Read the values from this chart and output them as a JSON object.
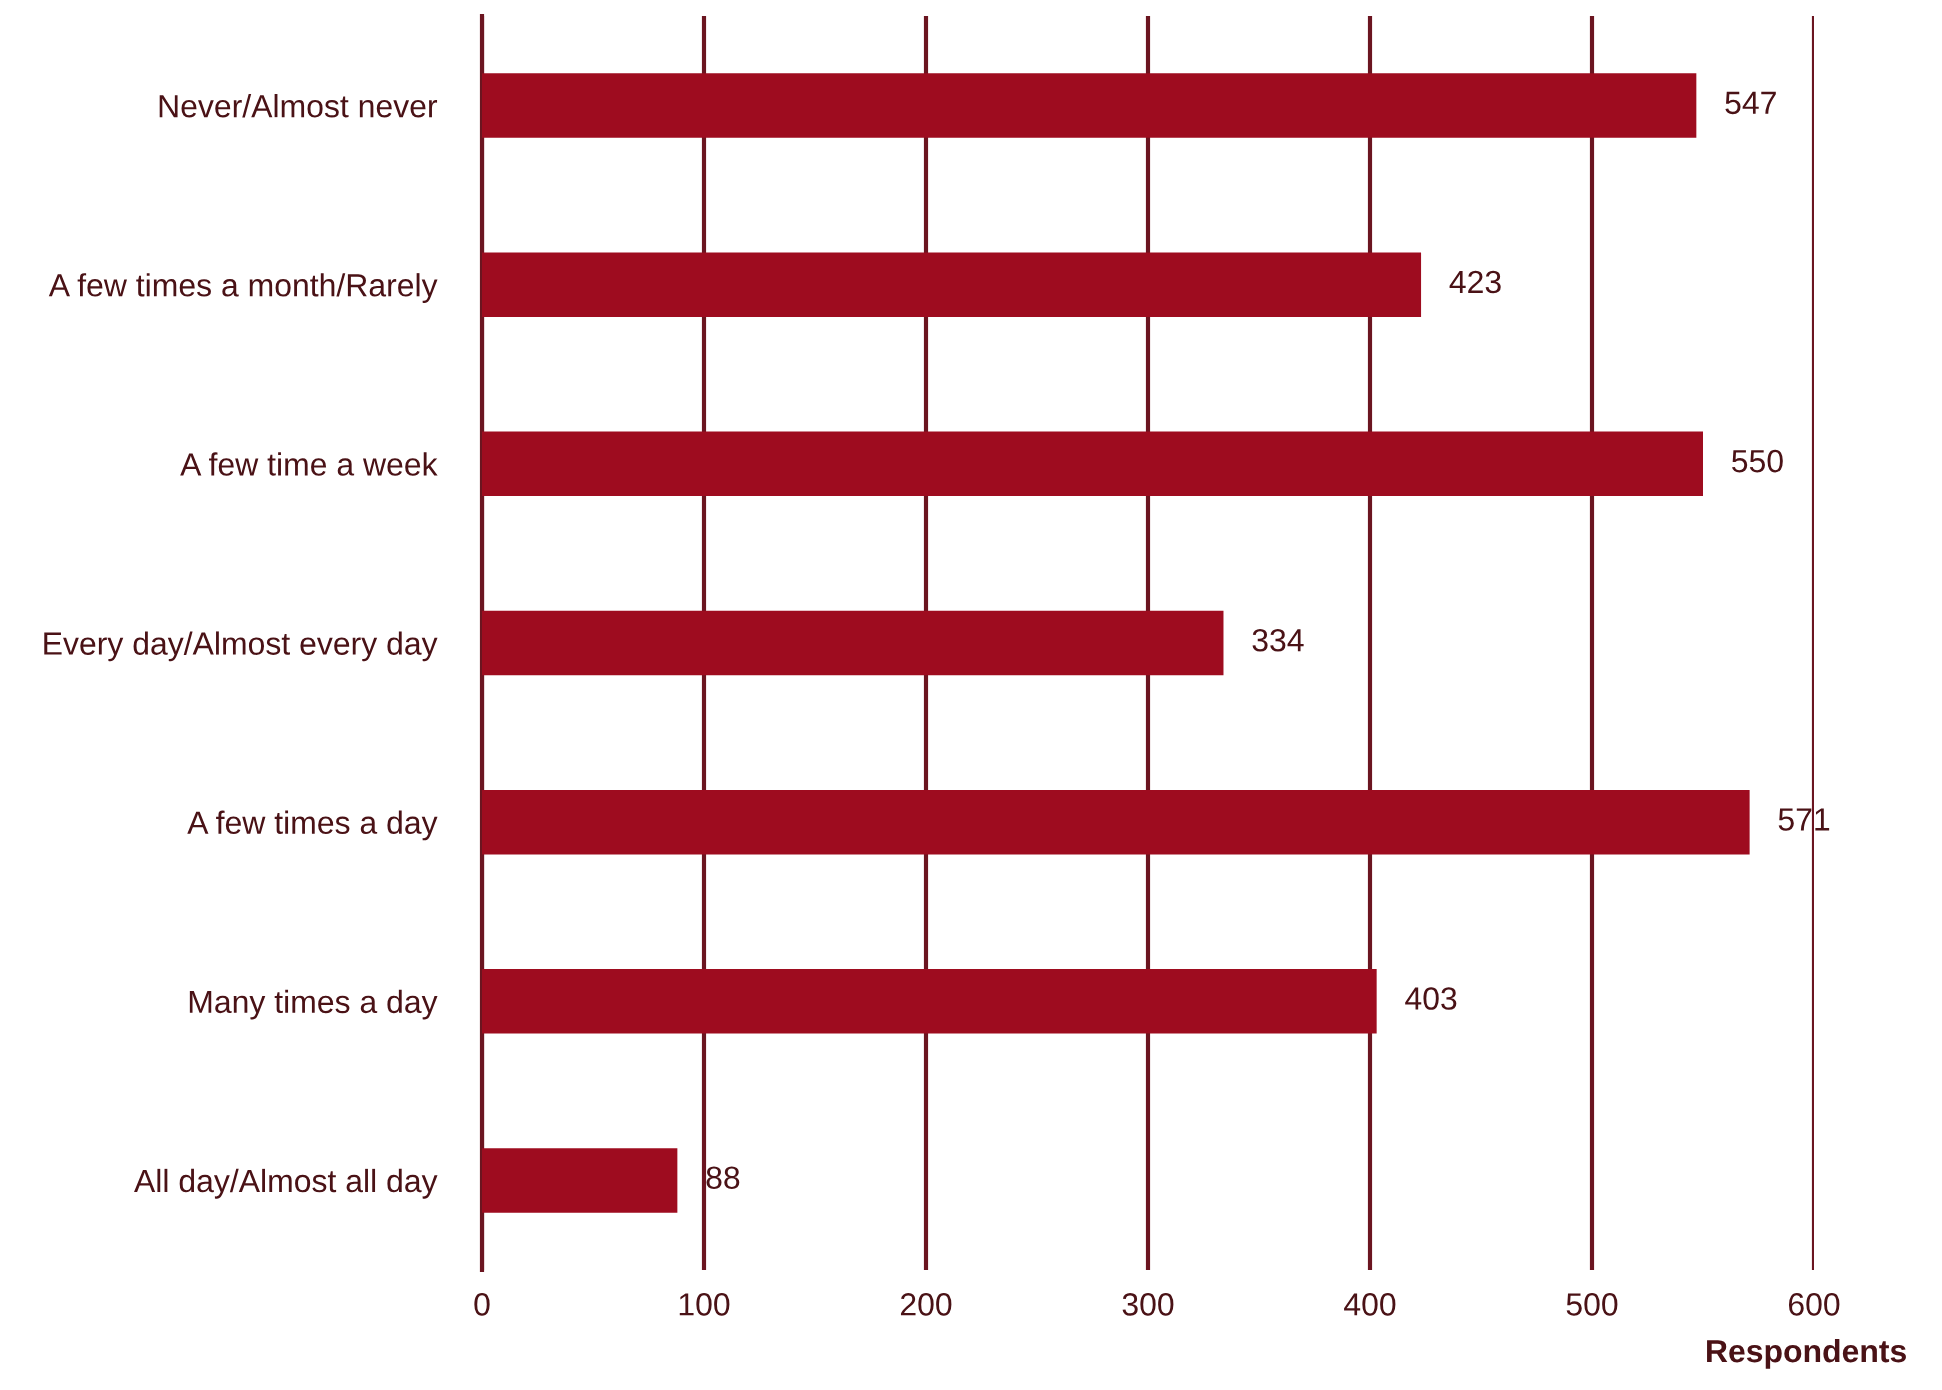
{
  "chart_data": {
    "type": "bar",
    "orientation": "horizontal",
    "xlabel": "Respondents",
    "categories": [
      "Never/Almost never",
      "A few times a month/Rarely",
      "A few time a week",
      "Every day/Almost every day",
      "A few times a day",
      "Many times a day",
      "All day/Almost all day"
    ],
    "values": [
      547,
      423,
      550,
      334,
      571,
      403,
      88
    ],
    "color": "#9e0c1f",
    "xlim": [
      0,
      600
    ],
    "xticks": [
      0,
      100,
      200,
      300,
      400,
      500,
      600
    ],
    "grid": "x",
    "data_labels": true
  }
}
